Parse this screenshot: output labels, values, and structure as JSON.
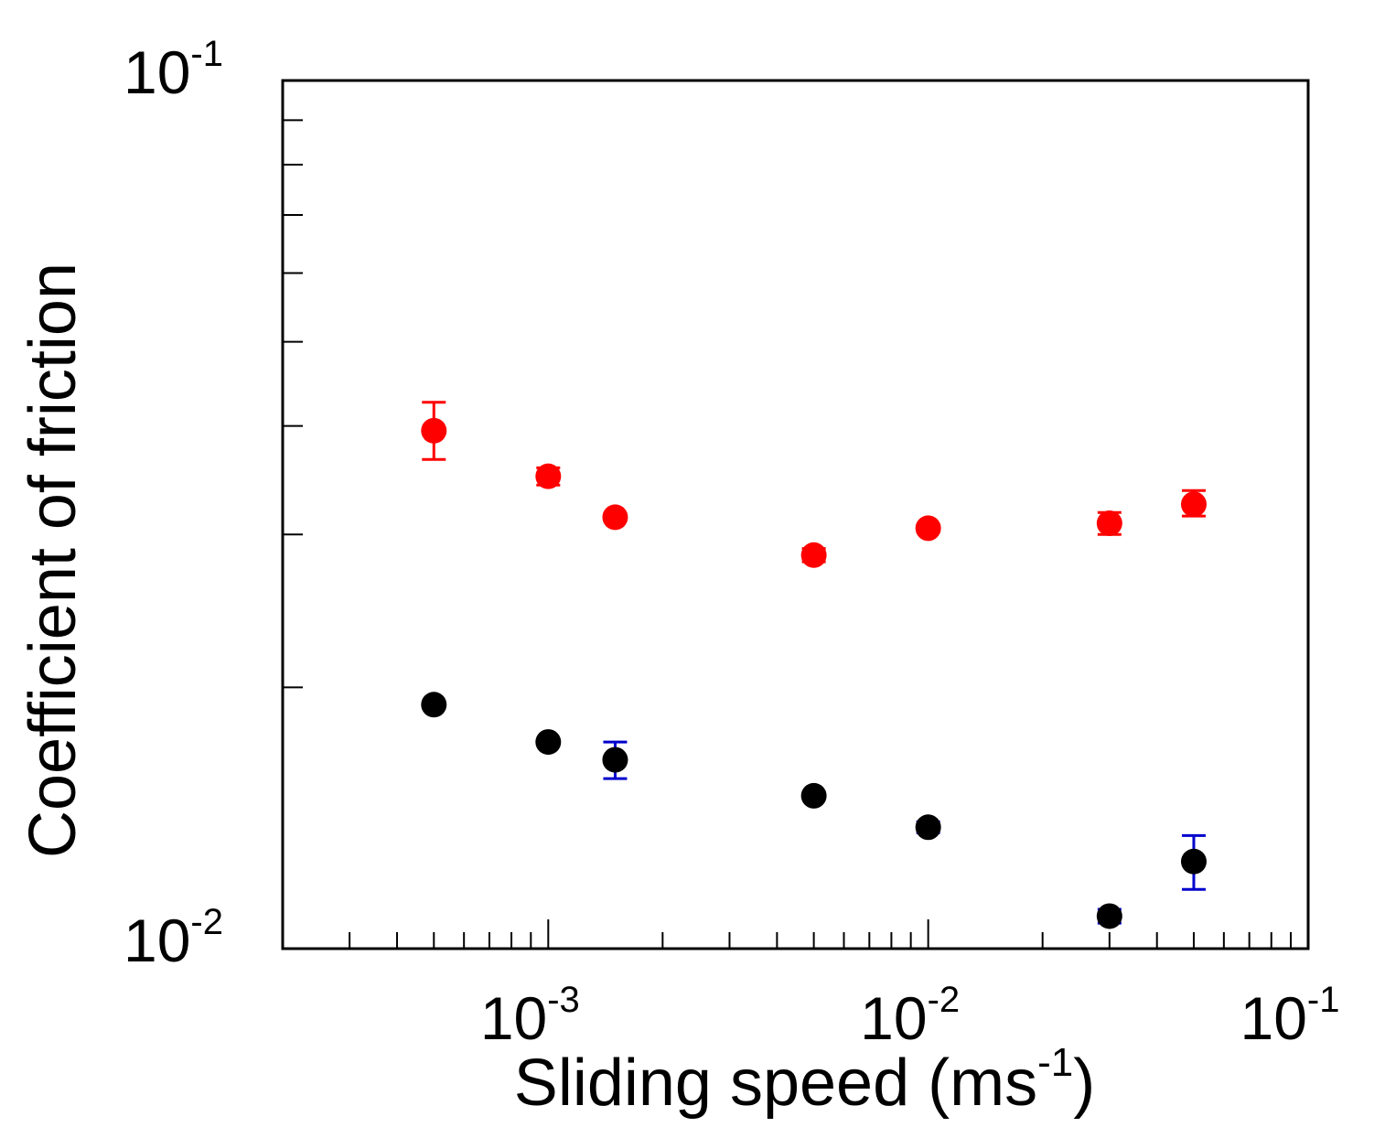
{
  "chart_data": {
    "type": "scatter",
    "title": "",
    "xlabel": {
      "text": "Sliding speed (ms",
      "sup": "-1",
      "suffix": ")"
    },
    "ylabel": "Coefficient of friction",
    "xscale": "log",
    "yscale": "log",
    "xlim": [
      0.0002,
      0.1
    ],
    "ylim": [
      0.01,
      0.1
    ],
    "x_tick_labels": [
      {
        "value": 0.001,
        "base": "10",
        "exp": "-3"
      },
      {
        "value": 0.01,
        "base": "10",
        "exp": "-2"
      },
      {
        "value": 0.1,
        "base": "10",
        "exp": "-1"
      }
    ],
    "y_tick_labels": [
      {
        "value": 0.01,
        "base": "10",
        "exp": "-2"
      },
      {
        "value": 0.1,
        "base": "10",
        "exp": "-1"
      }
    ],
    "legend": null,
    "series": [
      {
        "name": "red",
        "marker_color": "#ff0000",
        "error_color": "#ff0000",
        "points": [
          {
            "x": 0.0005,
            "y": 0.0395,
            "lo": 0.0366,
            "hi": 0.0426
          },
          {
            "x": 0.001,
            "y": 0.035,
            "lo": 0.0342,
            "hi": 0.0358
          },
          {
            "x": 0.0015,
            "y": 0.0314,
            "lo": 0.0311,
            "hi": 0.0317
          },
          {
            "x": 0.005,
            "y": 0.0284,
            "lo": 0.0279,
            "hi": 0.0289
          },
          {
            "x": 0.01,
            "y": 0.0305,
            "lo": 0.0302,
            "hi": 0.0308
          },
          {
            "x": 0.03,
            "y": 0.0309,
            "lo": 0.03,
            "hi": 0.0318
          },
          {
            "x": 0.05,
            "y": 0.0325,
            "lo": 0.0315,
            "hi": 0.0337
          }
        ]
      },
      {
        "name": "black",
        "marker_color": "#000000",
        "error_color": "#0000cc",
        "points": [
          {
            "x": 0.0005,
            "y": 0.0191,
            "lo": 0.019,
            "hi": 0.0192
          },
          {
            "x": 0.001,
            "y": 0.0173,
            "lo": 0.0172,
            "hi": 0.0174
          },
          {
            "x": 0.0015,
            "y": 0.0165,
            "lo": 0.0157,
            "hi": 0.0173
          },
          {
            "x": 0.005,
            "y": 0.015,
            "lo": 0.0149,
            "hi": 0.0151
          },
          {
            "x": 0.01,
            "y": 0.0138,
            "lo": 0.0136,
            "hi": 0.014
          },
          {
            "x": 0.03,
            "y": 0.0109,
            "lo": 0.0107,
            "hi": 0.0111
          },
          {
            "x": 0.05,
            "y": 0.0126,
            "lo": 0.0117,
            "hi": 0.0135
          }
        ]
      }
    ]
  }
}
